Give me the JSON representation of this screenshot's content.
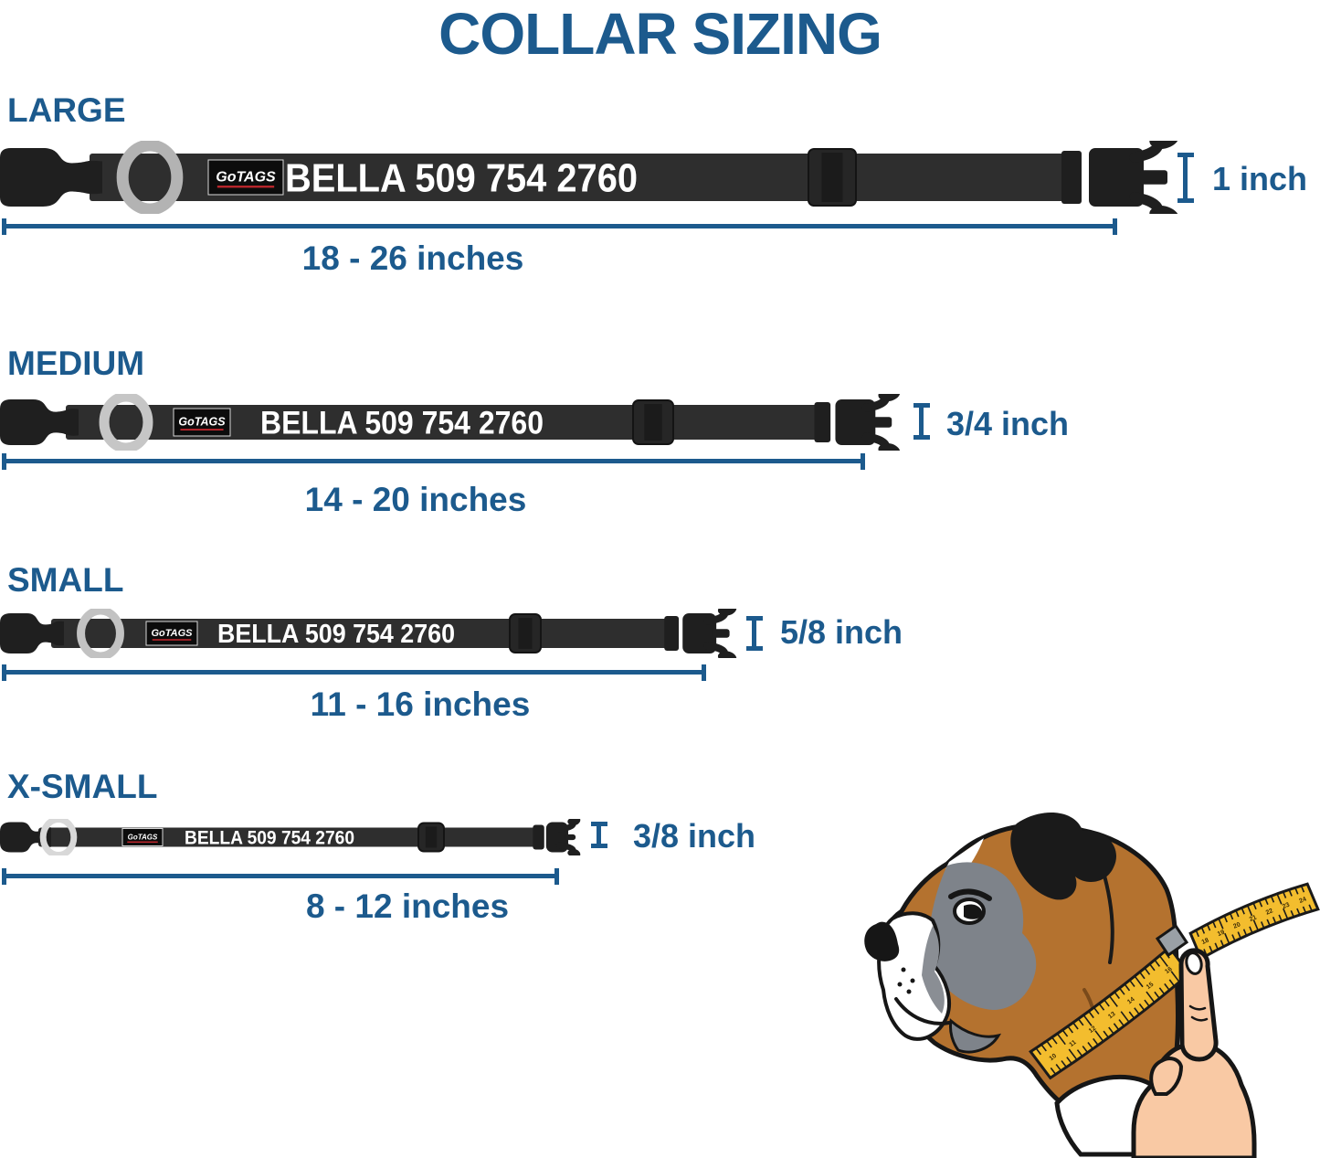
{
  "title": "COLLAR SIZING",
  "collar": {
    "brand": "GoTAGS",
    "personalization": "BELLA 509 754 2760"
  },
  "sizes": [
    {
      "id": "large",
      "label": "LARGE",
      "length_range": "18 - 26 inches",
      "width": "1 inch"
    },
    {
      "id": "medium",
      "label": "MEDIUM",
      "length_range": "14 - 20 inches",
      "width": "3/4 inch"
    },
    {
      "id": "small",
      "label": "SMALL",
      "length_range": "11 - 16 inches",
      "width": "5/8 inch"
    },
    {
      "id": "x-small",
      "label": "X-SMALL",
      "length_range": "8 - 12 inches",
      "width": "3/8 inch"
    }
  ],
  "illustration": {
    "description": "Boxer dog head with measuring tape around neck held by a hand",
    "tape_numbers_lower": [
      "10",
      "11",
      "12",
      "13",
      "14",
      "15",
      "16"
    ],
    "tape_numbers_upper": [
      "18",
      "19",
      "20",
      "21",
      "22",
      "23",
      "24"
    ]
  },
  "colors": {
    "accent_blue": "#1c5a8d",
    "strap_black": "#2e2e2e",
    "buckle_black": "#1f1f1f",
    "ring_gray": "#b3b3b3",
    "brand_red": "#c0272d",
    "personalization_white": "#ffffff",
    "tape_yellow": "#f3bd2e",
    "fur_brown": "#b4722f",
    "mask_gray": "#7e838a",
    "skin_tone": "#f9c9a4"
  }
}
